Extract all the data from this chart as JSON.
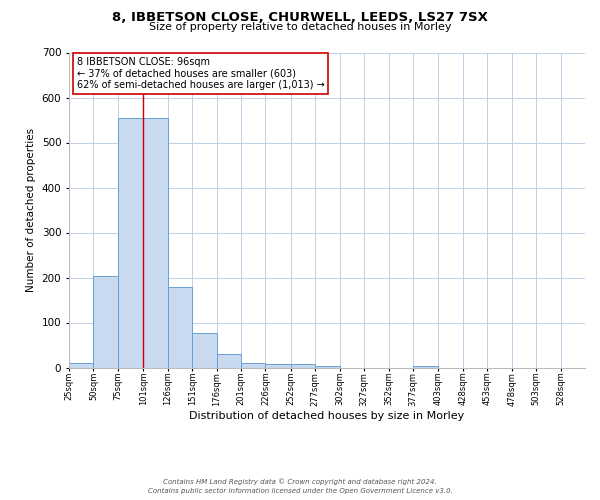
{
  "title_line1": "8, IBBETSON CLOSE, CHURWELL, LEEDS, LS27 7SX",
  "title_line2": "Size of property relative to detached houses in Morley",
  "xlabel": "Distribution of detached houses by size in Morley",
  "ylabel": "Number of detached properties",
  "bin_labels": [
    "25sqm",
    "50sqm",
    "75sqm",
    "101sqm",
    "126sqm",
    "151sqm",
    "176sqm",
    "201sqm",
    "226sqm",
    "252sqm",
    "277sqm",
    "302sqm",
    "327sqm",
    "352sqm",
    "377sqm",
    "403sqm",
    "428sqm",
    "453sqm",
    "478sqm",
    "503sqm",
    "528sqm"
  ],
  "bin_edges": [
    25,
    50,
    75,
    101,
    126,
    151,
    176,
    201,
    226,
    252,
    277,
    302,
    327,
    352,
    377,
    403,
    428,
    453,
    478,
    503,
    528,
    553
  ],
  "bar_heights": [
    10,
    203,
    555,
    555,
    178,
    76,
    30,
    10,
    8,
    8,
    3,
    0,
    0,
    0,
    4,
    0,
    0,
    0,
    0,
    0,
    0
  ],
  "bar_facecolor": "#c8d9f0",
  "bar_edgecolor": "#6aa0d4",
  "ylim": [
    0,
    700
  ],
  "yticks": [
    0,
    100,
    200,
    300,
    400,
    500,
    600,
    700
  ],
  "red_line_x": 101,
  "annotation_text": "8 IBBETSON CLOSE: 96sqm\n← 37% of detached houses are smaller (603)\n62% of semi-detached houses are larger (1,013) →",
  "annotation_box_edgecolor": "#cc0000",
  "annotation_box_facecolor": "#ffffff",
  "footer_line1": "Contains HM Land Registry data © Crown copyright and database right 2024.",
  "footer_line2": "Contains public sector information licensed under the Open Government Licence v3.0.",
  "background_color": "#ffffff",
  "grid_color": "#c0d0e8",
  "title1_fontsize": 9.5,
  "title2_fontsize": 8,
  "ylabel_fontsize": 7.5,
  "xlabel_fontsize": 8,
  "ytick_fontsize": 7.5,
  "xtick_fontsize": 6,
  "annotation_fontsize": 7,
  "footer_fontsize": 5
}
